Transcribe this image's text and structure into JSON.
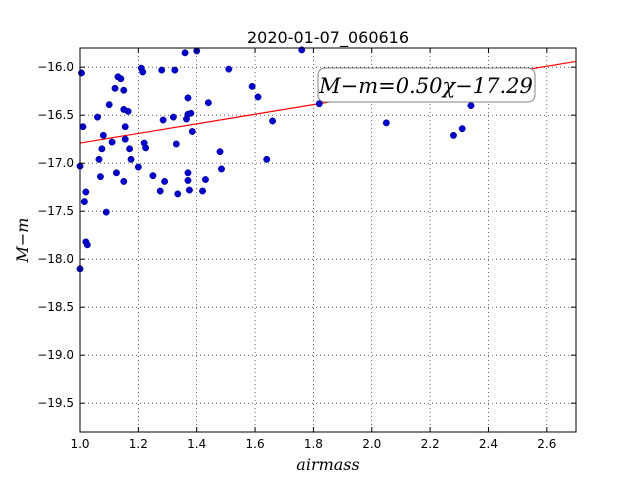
{
  "chart_data": {
    "type": "scatter",
    "title": "2020-01-07_060616",
    "xlabel": "airmass",
    "ylabel": "M−m",
    "xlim": [
      1.0,
      2.7
    ],
    "ylim": [
      -19.8,
      -15.8
    ],
    "y_inverted": true,
    "grid": true,
    "x_ticks": [
      1.0,
      1.2,
      1.4,
      1.6,
      1.8,
      2.0,
      2.2,
      2.4,
      2.6
    ],
    "x_tick_labels": [
      "1.0",
      "1.2",
      "1.4",
      "1.6",
      "1.8",
      "2.0",
      "2.2",
      "2.4",
      "2.6"
    ],
    "y_ticks": [
      -16.0,
      -16.5,
      -17.0,
      -17.5,
      -18.0,
      -18.5,
      -19.0,
      -19.5
    ],
    "y_tick_labels": [
      "−16.0",
      "−16.5",
      "−17.0",
      "−17.5",
      "−18.0",
      "−18.5",
      "−19.0",
      "−19.5"
    ],
    "annotation": "M−m=0.50χ−17.29",
    "fit": {
      "slope": 0.5,
      "intercept": -17.29,
      "color": "#ff0000"
    },
    "point_color": "#0000cc",
    "points": [
      [
        1.0,
        -17.03
      ],
      [
        1.0,
        -18.1
      ],
      [
        1.005,
        -16.06
      ],
      [
        1.01,
        -16.62
      ],
      [
        1.015,
        -17.4
      ],
      [
        1.02,
        -17.3
      ],
      [
        1.02,
        -17.82
      ],
      [
        1.025,
        -17.85
      ],
      [
        1.06,
        -16.52
      ],
      [
        1.065,
        -16.96
      ],
      [
        1.07,
        -17.14
      ],
      [
        1.075,
        -16.85
      ],
      [
        1.08,
        -16.71
      ],
      [
        1.09,
        -17.51
      ],
      [
        1.1,
        -16.39
      ],
      [
        1.11,
        -16.78
      ],
      [
        1.12,
        -16.22
      ],
      [
        1.125,
        -17.1
      ],
      [
        1.13,
        -16.1
      ],
      [
        1.14,
        -16.12
      ],
      [
        1.15,
        -16.24
      ],
      [
        1.15,
        -16.44
      ],
      [
        1.155,
        -16.62
      ],
      [
        1.155,
        -16.75
      ],
      [
        1.15,
        -17.19
      ],
      [
        1.165,
        -16.46
      ],
      [
        1.17,
        -16.85
      ],
      [
        1.175,
        -16.96
      ],
      [
        1.2,
        -17.04
      ],
      [
        1.21,
        -16.01
      ],
      [
        1.215,
        -16.05
      ],
      [
        1.22,
        -16.79
      ],
      [
        1.225,
        -16.84
      ],
      [
        1.25,
        -17.13
      ],
      [
        1.275,
        -17.29
      ],
      [
        1.28,
        -16.03
      ],
      [
        1.285,
        -16.55
      ],
      [
        1.29,
        -17.19
      ],
      [
        1.32,
        -16.52
      ],
      [
        1.325,
        -16.03
      ],
      [
        1.33,
        -16.8
      ],
      [
        1.335,
        -17.32
      ],
      [
        1.36,
        -15.85
      ],
      [
        1.365,
        -16.54
      ],
      [
        1.37,
        -16.49
      ],
      [
        1.37,
        -16.32
      ],
      [
        1.37,
        -17.1
      ],
      [
        1.37,
        -17.18
      ],
      [
        1.375,
        -17.28
      ],
      [
        1.38,
        -16.48
      ],
      [
        1.385,
        -16.67
      ],
      [
        1.4,
        -15.83
      ],
      [
        1.42,
        -17.29
      ],
      [
        1.43,
        -17.17
      ],
      [
        1.44,
        -16.37
      ],
      [
        1.48,
        -16.88
      ],
      [
        1.485,
        -17.06
      ],
      [
        1.51,
        -16.02
      ],
      [
        1.59,
        -16.2
      ],
      [
        1.61,
        -16.31
      ],
      [
        1.64,
        -16.96
      ],
      [
        1.66,
        -16.56
      ],
      [
        1.76,
        -15.82
      ],
      [
        1.82,
        -16.38
      ],
      [
        2.05,
        -16.58
      ],
      [
        2.28,
        -16.71
      ],
      [
        2.31,
        -16.64
      ],
      [
        2.34,
        -16.4
      ]
    ]
  }
}
